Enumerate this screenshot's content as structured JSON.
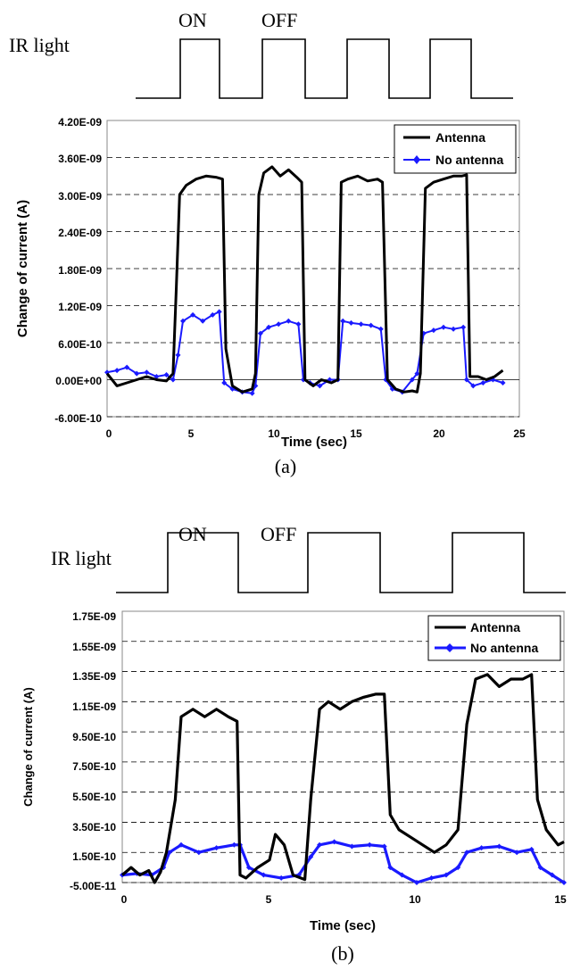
{
  "colors": {
    "antenna": "#000000",
    "no_antenna": "#1a1aff"
  },
  "panels": [
    {
      "id": "a",
      "caption": "(a)",
      "ir": {
        "label": "IR light",
        "on_label": "ON",
        "off_label": "OFF"
      }
    },
    {
      "id": "b",
      "caption": "(b)",
      "ir": {
        "label": "IR light",
        "on_label": "ON",
        "off_label": "OFF"
      }
    }
  ],
  "chart_data": [
    {
      "type": "line",
      "xlabel": "Time (sec)",
      "ylabel": "Change of current (A)",
      "xlim": [
        0,
        25
      ],
      "ylim": [
        -6e-10,
        4.2e-09
      ],
      "xticks": [
        "0",
        "5",
        "10",
        "15",
        "20",
        "25"
      ],
      "xtick_values": [
        0,
        5,
        10,
        15,
        20,
        25
      ],
      "yticks": [
        "4.20E-09",
        "3.60E-09",
        "3.00E-09",
        "2.40E-09",
        "1.80E-09",
        "1.20E-09",
        "6.00E-10",
        "0.00E+00",
        "-6.00E-10"
      ],
      "ytick_values": [
        4.2e-09,
        3.6e-09,
        3e-09,
        2.4e-09,
        1.8e-09,
        1.2e-09,
        6e-10,
        0,
        -6e-10
      ],
      "grid": "horizontal-dashed",
      "legend": "top-right",
      "ir_pulses_on": [
        [
          4.3,
          6.8
        ],
        [
          9.0,
          11.8
        ],
        [
          14.0,
          16.6
        ],
        [
          18.8,
          21.6
        ]
      ],
      "series": [
        {
          "name": "Antenna",
          "color": "#000000",
          "marker": "none",
          "x": [
            0,
            0.6,
            1.2,
            1.8,
            2.4,
            3.0,
            3.6,
            4.0,
            4.2,
            4.4,
            4.8,
            5.4,
            6.0,
            6.6,
            7.0,
            7.2,
            7.6,
            8.2,
            8.8,
            9.0,
            9.2,
            9.5,
            10.0,
            10.5,
            11.0,
            11.5,
            11.8,
            12.0,
            12.5,
            13.0,
            13.6,
            14.0,
            14.2,
            14.6,
            15.2,
            15.8,
            16.4,
            16.7,
            17.0,
            17.5,
            18.0,
            18.5,
            18.8,
            19.0,
            19.3,
            19.8,
            20.4,
            21.0,
            21.5,
            21.8,
            22.0,
            22.5,
            23.0,
            23.5,
            24.0
          ],
          "y": [
            1e-10,
            -1e-10,
            -5e-11,
            0,
            5e-11,
            0,
            -2e-11,
            1e-10,
            1.5e-09,
            3e-09,
            3.15e-09,
            3.25e-09,
            3.3e-09,
            3.28e-09,
            3.25e-09,
            5e-10,
            -1e-10,
            -2e-10,
            -1.5e-10,
            1e-10,
            3e-09,
            3.35e-09,
            3.45e-09,
            3.3e-09,
            3.4e-09,
            3.28e-09,
            3.2e-09,
            0,
            -1e-10,
            0,
            -5e-11,
            0,
            3.2e-09,
            3.25e-09,
            3.3e-09,
            3.22e-09,
            3.25e-09,
            3.2e-09,
            0,
            -1.5e-10,
            -2e-10,
            -1.8e-10,
            -2e-10,
            1e-10,
            3.1e-09,
            3.2e-09,
            3.25e-09,
            3.3e-09,
            3.3e-09,
            3.32e-09,
            5e-11,
            5e-11,
            0,
            5e-11,
            1.5e-10
          ]
        },
        {
          "name": "No antenna",
          "color": "#1a1aff",
          "marker": "diamond",
          "x": [
            0,
            0.6,
            1.2,
            1.8,
            2.4,
            3.0,
            3.6,
            4.0,
            4.3,
            4.6,
            5.2,
            5.8,
            6.4,
            6.8,
            7.1,
            7.6,
            8.2,
            8.8,
            9.0,
            9.3,
            9.8,
            10.4,
            11.0,
            11.6,
            11.9,
            12.3,
            12.9,
            13.5,
            14.0,
            14.3,
            14.8,
            15.4,
            16.0,
            16.6,
            16.9,
            17.3,
            17.9,
            18.5,
            18.8,
            19.2,
            19.8,
            20.4,
            21.0,
            21.6,
            21.8,
            22.2,
            22.8,
            23.4,
            24.0
          ],
          "y": [
            1.2e-10,
            1.5e-10,
            2e-10,
            1e-10,
            1.2e-10,
            5e-11,
            8e-11,
            0,
            4e-10,
            9.5e-10,
            1.05e-09,
            9.5e-10,
            1.05e-09,
            1.1e-09,
            -5e-11,
            -1.5e-10,
            -2e-10,
            -2.2e-10,
            -1e-10,
            7.5e-10,
            8.5e-10,
            9e-10,
            9.5e-10,
            9e-10,
            0,
            -5e-11,
            -1e-10,
            0,
            0,
            9.5e-10,
            9.2e-10,
            9e-10,
            8.8e-10,
            8.2e-10,
            0,
            -1.5e-10,
            -2e-10,
            0,
            1e-10,
            7.5e-10,
            8e-10,
            8.5e-10,
            8.2e-10,
            8.5e-10,
            0,
            -1e-10,
            -5e-11,
            0,
            -5e-11
          ]
        }
      ]
    },
    {
      "type": "line",
      "xlabel": "Time (sec)",
      "ylabel": "Change of current (A)",
      "xlim": [
        0,
        15
      ],
      "ylim": [
        -5e-11,
        1.75e-09
      ],
      "xticks": [
        "0",
        "5",
        "10",
        "15"
      ],
      "xtick_values": [
        0,
        5,
        10,
        15
      ],
      "yticks": [
        "1.75E-09",
        "1.55E-09",
        "1.35E-09",
        "1.15E-09",
        "9.50E-10",
        "7.50E-10",
        "5.50E-10",
        "3.50E-10",
        "1.50E-10",
        "-5.00E-11"
      ],
      "ytick_values": [
        1.75e-09,
        1.55e-09,
        1.35e-09,
        1.15e-09,
        9.5e-10,
        7.5e-10,
        5.5e-10,
        3.5e-10,
        1.5e-10,
        -5e-11
      ],
      "grid": "horizontal-dashed",
      "legend": "top-right",
      "ir_pulses_on": [
        [
          1.5,
          4.0
        ],
        [
          6.4,
          8.9
        ],
        [
          11.4,
          13.9
        ]
      ],
      "series": [
        {
          "name": "Antenna",
          "color": "#000000",
          "marker": "none",
          "x": [
            0,
            0.3,
            0.6,
            0.9,
            1.1,
            1.3,
            1.5,
            1.8,
            2.0,
            2.4,
            2.8,
            3.2,
            3.6,
            3.9,
            4.0,
            4.2,
            4.6,
            5.0,
            5.2,
            5.5,
            5.8,
            6.2,
            6.4,
            6.7,
            7.0,
            7.4,
            7.8,
            8.2,
            8.6,
            8.9,
            9.1,
            9.4,
            9.8,
            10.2,
            10.6,
            11.0,
            11.4,
            11.7,
            12.0,
            12.4,
            12.8,
            13.2,
            13.6,
            13.9,
            14.1,
            14.4,
            14.8,
            15.0
          ],
          "y": [
            0,
            5e-11,
            0,
            3e-11,
            -5e-11,
            2e-11,
            1.5e-10,
            5e-10,
            1.05e-09,
            1.1e-09,
            1.05e-09,
            1.1e-09,
            1.05e-09,
            1.02e-09,
            0,
            -2e-11,
            5e-11,
            1e-10,
            2.7e-10,
            2e-10,
            0,
            -3e-11,
            5e-10,
            1.1e-09,
            1.15e-09,
            1.1e-09,
            1.15e-09,
            1.18e-09,
            1.2e-09,
            1.2e-09,
            4e-10,
            3e-10,
            2.5e-10,
            2e-10,
            1.5e-10,
            2e-10,
            3e-10,
            1e-09,
            1.3e-09,
            1.33e-09,
            1.25e-09,
            1.3e-09,
            1.3e-09,
            1.33e-09,
            5e-10,
            3e-10,
            2e-10,
            2.2e-10
          ]
        },
        {
          "name": "No antenna",
          "color": "#1a1aff",
          "marker": "diamond",
          "x": [
            0,
            0.5,
            1.0,
            1.4,
            1.6,
            2.0,
            2.6,
            3.2,
            3.8,
            4.0,
            4.3,
            4.8,
            5.4,
            6.0,
            6.4,
            6.7,
            7.2,
            7.8,
            8.4,
            8.9,
            9.1,
            9.5,
            10.0,
            10.5,
            11.0,
            11.4,
            11.7,
            12.2,
            12.8,
            13.4,
            13.9,
            14.2,
            14.6,
            15.0
          ],
          "y": [
            0,
            1e-11,
            0,
            5e-11,
            1.5e-10,
            2e-10,
            1.5e-10,
            1.8e-10,
            2e-10,
            2e-10,
            5e-11,
            0,
            -2e-11,
            0,
            1.2e-10,
            2e-10,
            2.2e-10,
            1.9e-10,
            2e-10,
            1.9e-10,
            5e-11,
            0,
            -5e-11,
            -2e-11,
            0,
            5e-11,
            1.5e-10,
            1.8e-10,
            1.9e-10,
            1.5e-10,
            1.7e-10,
            5e-11,
            0,
            -5e-11
          ]
        }
      ]
    }
  ]
}
